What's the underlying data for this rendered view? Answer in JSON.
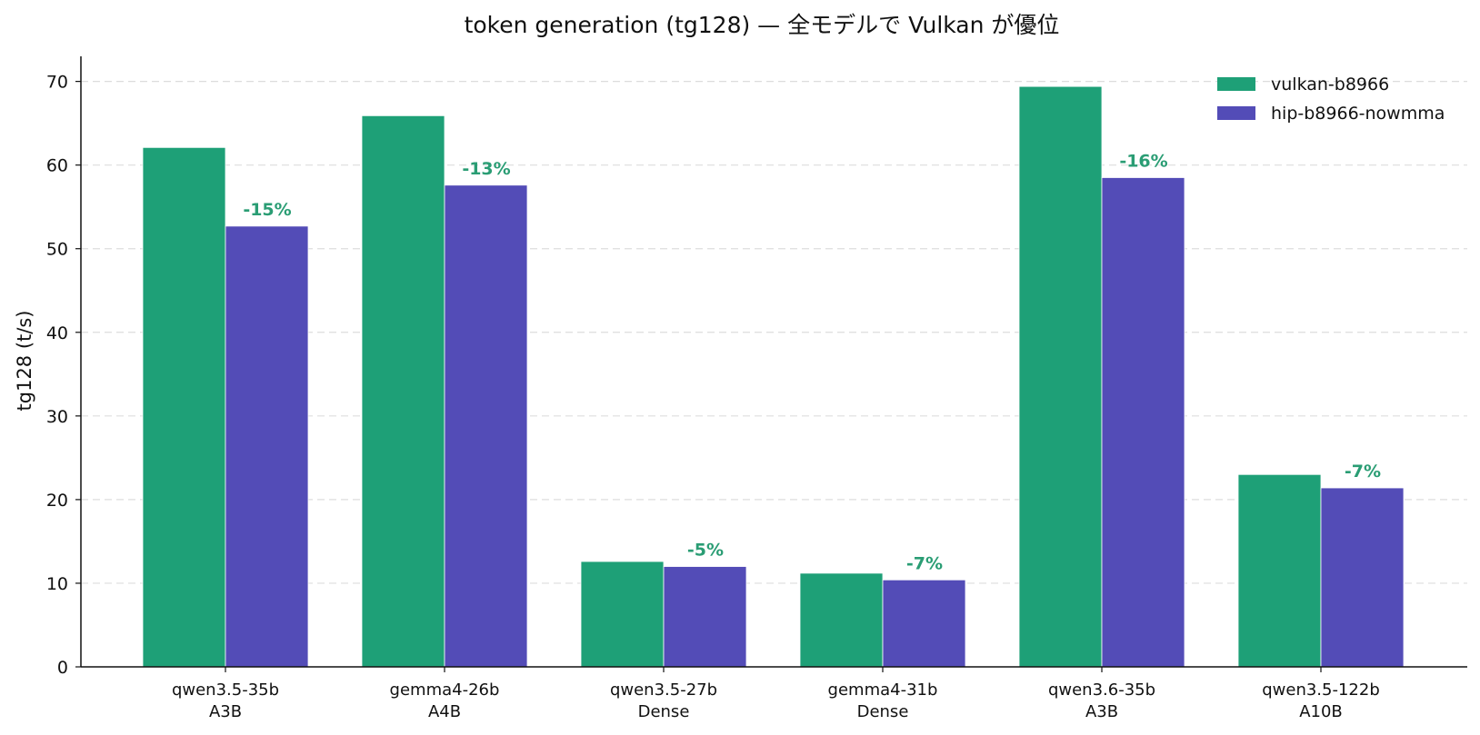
{
  "chart_data": {
    "type": "bar",
    "title": "token generation (tg128) — 全モデルで Vulkan が優位",
    "xlabel": "",
    "ylabel": "tg128 (t/s)",
    "ylim": [
      0,
      73
    ],
    "yticks": [
      0,
      10,
      20,
      30,
      40,
      50,
      60,
      70
    ],
    "grid": "horizontal-dashed",
    "legend_position": "top-right",
    "categories": [
      [
        "qwen3.5-35b",
        "A3B"
      ],
      [
        "gemma4-26b",
        "A4B"
      ],
      [
        "qwen3.5-27b",
        "Dense"
      ],
      [
        "gemma4-31b",
        "Dense"
      ],
      [
        "qwen3.6-35b",
        "A3B"
      ],
      [
        "qwen3.5-122b",
        "A10B"
      ]
    ],
    "series": [
      {
        "name": "vulkan-b8966",
        "color": "#1ea077",
        "values": [
          62.1,
          65.9,
          12.6,
          11.2,
          69.4,
          23.0
        ]
      },
      {
        "name": "hip-b8966-nowmma",
        "color": "#534cb7",
        "values": [
          52.7,
          57.6,
          12.0,
          10.4,
          58.5,
          21.4
        ]
      }
    ],
    "annotations": [
      "-15%",
      "-13%",
      "-5%",
      "-7%",
      "-16%",
      "-7%"
    ],
    "annotation_color": "#2a9d74"
  }
}
